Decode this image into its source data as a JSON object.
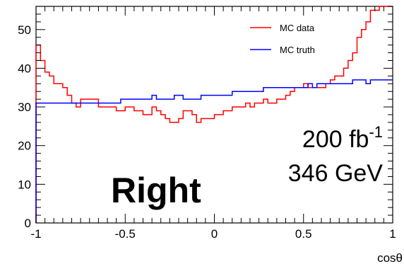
{
  "chart_data": {
    "type": "line",
    "title": "",
    "xlabel": "cosθ",
    "ylabel": "",
    "xlim": [
      -1,
      1
    ],
    "ylim": [
      0,
      56
    ],
    "grid": false,
    "legend_position": "top-right",
    "x_ticks": [
      "-1",
      "-0.5",
      "0",
      "0.5",
      "1"
    ],
    "y_ticks": [
      "0",
      "10",
      "20",
      "30",
      "40",
      "50"
    ],
    "x_tick_values": [
      -1,
      -0.5,
      0,
      0.5,
      1
    ],
    "y_tick_values": [
      0,
      10,
      20,
      30,
      40,
      50
    ],
    "bin_edges_start": -1,
    "bin_width": 0.025,
    "series": [
      {
        "name": "MC data",
        "color": "#ff0000",
        "values": [
          46,
          42,
          39,
          38,
          36,
          36,
          35,
          33,
          31,
          30,
          32,
          32,
          32,
          32,
          30,
          30,
          30,
          30,
          29,
          29,
          30,
          30,
          29,
          29,
          28,
          28,
          30,
          29,
          28,
          27,
          26,
          26,
          27,
          29,
          29,
          28,
          26,
          27,
          27,
          27,
          28,
          28,
          29,
          29,
          30,
          30,
          30,
          31,
          30,
          31,
          31,
          32,
          31,
          31,
          32,
          32,
          33,
          34,
          35,
          35,
          36,
          35,
          35,
          35,
          35,
          36,
          37,
          38,
          38,
          40,
          42,
          44,
          48,
          50,
          52,
          55,
          55,
          56,
          56,
          56
        ]
      },
      {
        "name": "MC truth",
        "color": "#0000ff",
        "values": [
          31,
          31,
          31,
          31,
          31,
          31,
          31,
          31,
          31,
          31,
          31,
          31,
          31,
          31,
          31,
          31,
          31,
          31,
          31,
          32,
          32,
          32,
          32,
          32,
          32,
          32,
          33,
          32,
          32,
          32,
          32,
          33,
          33,
          32,
          32,
          32,
          32,
          33,
          33,
          33,
          33,
          33,
          33,
          33,
          34,
          34,
          34,
          34,
          34,
          34,
          34,
          35,
          35,
          35,
          35,
          35,
          35,
          35,
          35,
          35,
          35,
          36,
          35,
          36,
          36,
          36,
          36,
          36,
          36,
          36,
          36,
          37,
          37,
          37,
          36,
          37,
          37,
          37,
          37,
          37
        ]
      }
    ],
    "annotations": {
      "label_right": "Right",
      "lumi_value": "200 fb",
      "lumi_exp": "-1",
      "energy": "346 GeV"
    }
  }
}
